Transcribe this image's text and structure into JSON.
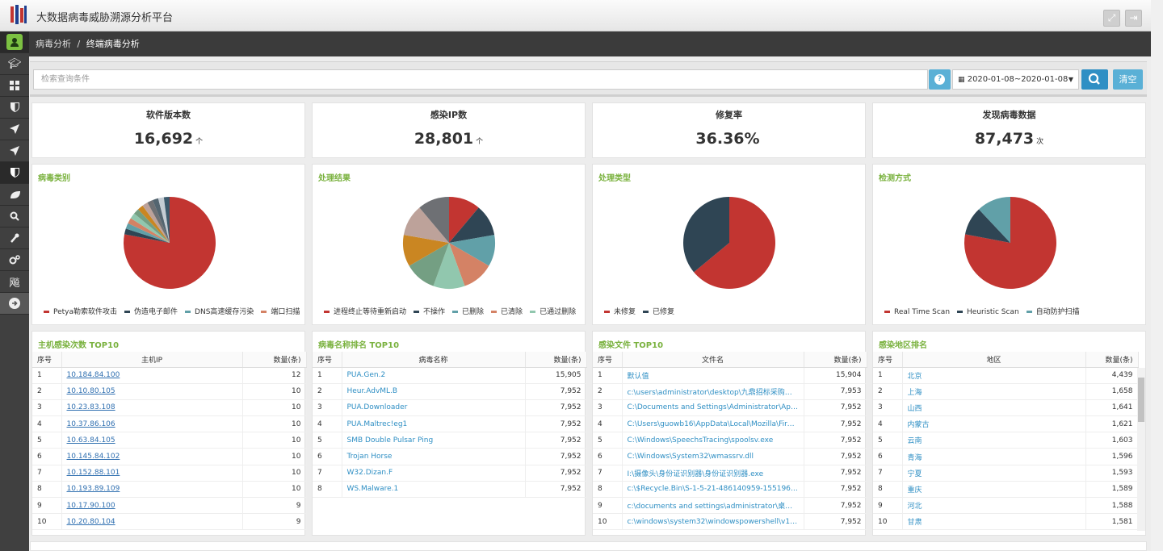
{
  "app": {
    "title": "大数据病毒威胁溯源分析平台"
  },
  "breadcrumb": {
    "parent": "病毒分析",
    "separator": "/",
    "current": "终端病毒分析"
  },
  "search": {
    "placeholder": "检索查询条件",
    "date_range": "2020-01-08~2020-01-08",
    "clear_label": "清空"
  },
  "stats": [
    {
      "title": "软件版本数",
      "value": "16,692",
      "unit": "个"
    },
    {
      "title": "感染IP数",
      "value": "28,801",
      "unit": "个"
    },
    {
      "title": "修复率",
      "value": "36.36%",
      "unit": ""
    },
    {
      "title": "发现病毒数据",
      "value": "87,473",
      "unit": "次"
    }
  ],
  "chart_data": [
    {
      "type": "pie",
      "title": "病毒类别",
      "legend": [
        "Petya勒索软件攻击",
        "伪造电子邮件",
        "DNS高速缓存污染",
        "端口扫描"
      ],
      "values": [
        78,
        2,
        2,
        2,
        2,
        2,
        2,
        2,
        2,
        2,
        2,
        2
      ],
      "colors": [
        "#c23531",
        "#2f4554",
        "#61a0a8",
        "#d48265",
        "#91c7ae",
        "#749f83",
        "#ca8622",
        "#bda29a",
        "#6e7074",
        "#546570",
        "#c4ccd3",
        "#3d5a6c"
      ]
    },
    {
      "type": "pie",
      "title": "处理结果",
      "legend": [
        "进程终止等待重新启动",
        "不操作",
        "已删除",
        "已清除",
        "已通过删除"
      ],
      "values": [
        1,
        1,
        1,
        1,
        1,
        1,
        1,
        1,
        1
      ],
      "colors": [
        "#c23531",
        "#2f4554",
        "#61a0a8",
        "#d48265",
        "#91c7ae",
        "#749f83",
        "#ca8622",
        "#bda29a",
        "#6e7074"
      ]
    },
    {
      "type": "pie",
      "title": "处理类型",
      "legend": [
        "未修复",
        "已修复"
      ],
      "values": [
        64,
        36
      ],
      "colors": [
        "#c23531",
        "#2f4554"
      ]
    },
    {
      "type": "pie",
      "title": "检测方式",
      "legend": [
        "Real Time Scan",
        "Heuristic Scan",
        "自动防护扫描"
      ],
      "values": [
        78,
        10,
        12
      ],
      "colors": [
        "#c23531",
        "#2f4554",
        "#61a0a8"
      ]
    }
  ],
  "tables": {
    "host": {
      "title": "主机感染次数 TOP10",
      "headers": [
        "序号",
        "主机IP",
        "数量(条)"
      ],
      "rows": [
        [
          "1",
          "10.184.84.100",
          "12"
        ],
        [
          "2",
          "10.10.80.105",
          "10"
        ],
        [
          "3",
          "10.23.83.108",
          "10"
        ],
        [
          "4",
          "10.37.86.106",
          "10"
        ],
        [
          "5",
          "10.63.84.105",
          "10"
        ],
        [
          "6",
          "10.145.84.102",
          "10"
        ],
        [
          "7",
          "10.152.88.101",
          "10"
        ],
        [
          "8",
          "10.193.89.109",
          "10"
        ],
        [
          "9",
          "10.17.90.100",
          "9"
        ],
        [
          "10",
          "10.20.80.104",
          "9"
        ]
      ]
    },
    "virus": {
      "title": "病毒名称排名 TOP10",
      "headers": [
        "序号",
        "病毒名称",
        "数量(条)"
      ],
      "rows": [
        [
          "1",
          "PUA.Gen.2",
          "15,905"
        ],
        [
          "2",
          "Heur.AdvML.B",
          "7,952"
        ],
        [
          "3",
          "PUA.Downloader",
          "7,952"
        ],
        [
          "4",
          "PUA.Maltrec!eg1",
          "7,952"
        ],
        [
          "5",
          "SMB Double Pulsar Ping",
          "7,952"
        ],
        [
          "6",
          "Trojan Horse",
          "7,952"
        ],
        [
          "7",
          "W32.Dizan.F",
          "7,952"
        ],
        [
          "8",
          "WS.Malware.1",
          "7,952"
        ]
      ]
    },
    "files": {
      "title": "感染文件 TOP10",
      "headers": [
        "序号",
        "文件名",
        "数量(条)"
      ],
      "rows": [
        [
          "1",
          "默认值",
          "15,904"
        ],
        [
          "2",
          "c:\\users\\administrator\\desktop\\九鼎招标采购评...",
          "7,953"
        ],
        [
          "3",
          "C:\\Documents and Settings\\Administrator\\App...",
          "7,952"
        ],
        [
          "4",
          "C:\\Users\\guowb16\\AppData\\Local\\Mozilla\\Fire...",
          "7,952"
        ],
        [
          "5",
          "C:\\Windows\\SpeechsTracing\\spoolsv.exe",
          "7,952"
        ],
        [
          "6",
          "C:\\Windows\\System32\\wmassrv.dll",
          "7,952"
        ],
        [
          "7",
          "I:\\摄像头\\身份证识别器\\身份证识别器.exe",
          "7,952"
        ],
        [
          "8",
          "c:\\$Recycle.Bin\\S-1-5-21-486140959-1551969...",
          "7,952"
        ],
        [
          "9",
          "c:\\documents and settings\\administrator\\桌面\\...",
          "7,952"
        ],
        [
          "10",
          "c:\\windows\\system32\\windowspowershell\\v1.0...",
          "7,952"
        ]
      ]
    },
    "region": {
      "title": "感染地区排名",
      "headers": [
        "序号",
        "地区",
        "数量(条)"
      ],
      "rows": [
        [
          "1",
          "北京",
          "4,439"
        ],
        [
          "2",
          "上海",
          "1,658"
        ],
        [
          "3",
          "山西",
          "1,641"
        ],
        [
          "4",
          "内蒙古",
          "1,621"
        ],
        [
          "5",
          "云南",
          "1,603"
        ],
        [
          "6",
          "青海",
          "1,596"
        ],
        [
          "7",
          "宁夏",
          "1,593"
        ],
        [
          "8",
          "重庆",
          "1,589"
        ],
        [
          "9",
          "河北",
          "1,588"
        ],
        [
          "10",
          "甘肃",
          "1,581"
        ]
      ]
    }
  },
  "sidebar": {
    "items": [
      "user",
      "graduation-cap",
      "dashboard",
      "shield",
      "send",
      "send",
      "shield",
      "leaf",
      "search",
      "wrench",
      "cogs",
      "飚",
      "arrow-right"
    ]
  }
}
